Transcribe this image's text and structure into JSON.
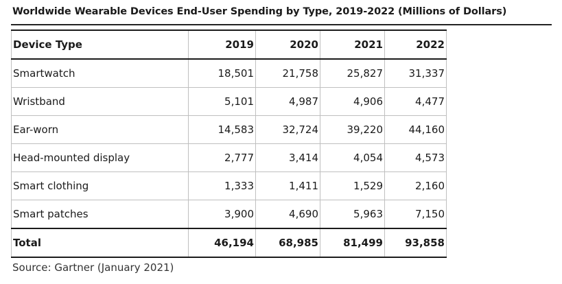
{
  "title": "Worldwide Wearable Devices End-User Spending by Type, 2019-2022 (Millions of Dollars)",
  "table": {
    "header": [
      "Device Type",
      "2019",
      "2020",
      "2021",
      "2022"
    ],
    "rows": [
      [
        "Smartwatch",
        "18,501",
        "21,758",
        "25,827",
        "31,337"
      ],
      [
        "Wristband",
        "5,101",
        "4,987",
        "4,906",
        "4,477"
      ],
      [
        "Ear-worn",
        "14,583",
        "32,724",
        "39,220",
        "44,160"
      ],
      [
        "Head-mounted display",
        "2,777",
        "3,414",
        "4,054",
        "4,573"
      ],
      [
        "Smart clothing",
        "1,333",
        "1,411",
        "1,529",
        "2,160"
      ],
      [
        "Smart patches",
        "3,900",
        "4,690",
        "5,963",
        "7,150"
      ]
    ],
    "total": [
      "Total",
      "46,194",
      "68,985",
      "81,499",
      "93,858"
    ]
  },
  "source": "Source: Gartner (January 2021)"
}
